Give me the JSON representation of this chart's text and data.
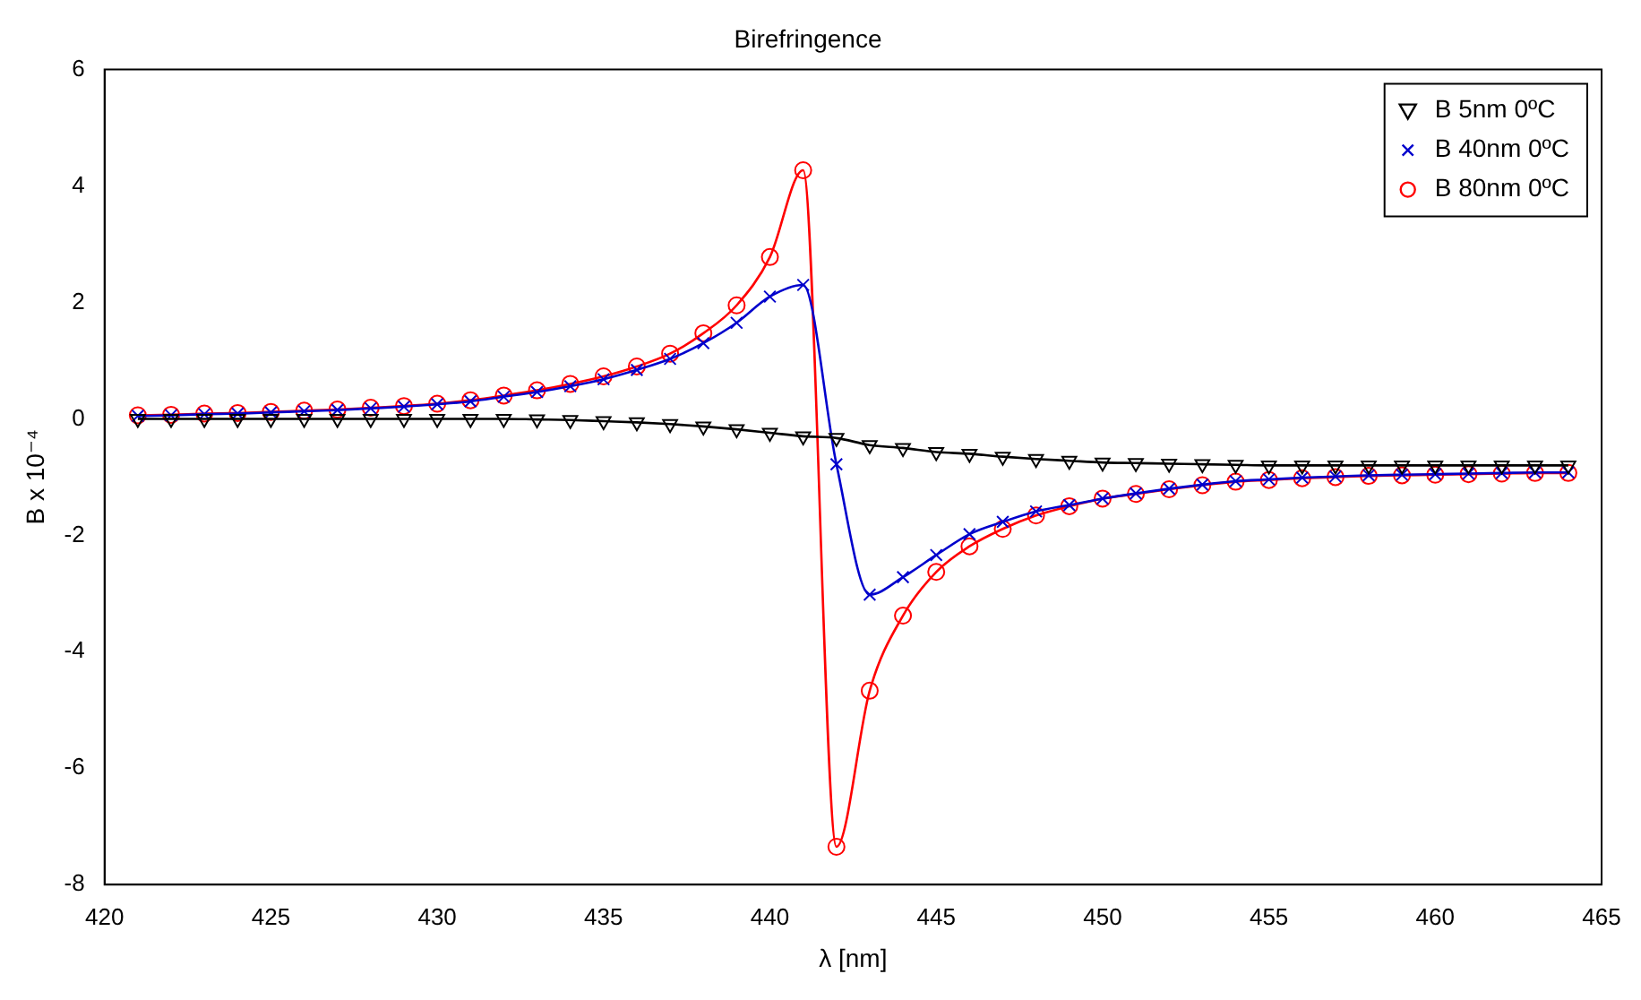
{
  "chart_data": {
    "type": "line",
    "title": "Birefringence",
    "xlabel": "λ [nm]",
    "ylabel": "B x 10⁻⁴",
    "x": [
      421,
      422,
      423,
      424,
      425,
      426,
      427,
      428,
      429,
      430,
      431,
      432,
      433,
      434,
      435,
      436,
      437,
      438,
      439,
      440,
      441,
      442,
      443,
      444,
      445,
      446,
      447,
      448,
      449,
      450,
      451,
      452,
      453,
      454,
      455,
      456,
      457,
      458,
      459,
      460,
      461,
      462,
      463,
      464
    ],
    "series": [
      {
        "name": "B 5nm 0ºC",
        "color": "#000000",
        "marker": "triangle",
        "values": [
          0,
          0,
          0,
          0,
          0,
          0,
          0,
          0,
          0,
          0,
          0,
          0,
          -0.01,
          -0.02,
          -0.04,
          -0.06,
          -0.09,
          -0.13,
          -0.18,
          -0.24,
          -0.3,
          -0.33,
          -0.45,
          -0.5,
          -0.57,
          -0.6,
          -0.65,
          -0.69,
          -0.72,
          -0.75,
          -0.76,
          -0.77,
          -0.78,
          -0.79,
          -0.8,
          -0.8,
          -0.8,
          -0.8,
          -0.8,
          -0.8,
          -0.8,
          -0.8,
          -0.8,
          -0.8
        ]
      },
      {
        "name": "B 40nm 0ºC",
        "color": "#0000cc",
        "marker": "cross",
        "values": [
          0.05,
          0.06,
          0.08,
          0.09,
          0.11,
          0.13,
          0.15,
          0.18,
          0.21,
          0.25,
          0.3,
          0.38,
          0.46,
          0.56,
          0.68,
          0.84,
          1.03,
          1.3,
          1.65,
          2.1,
          2.3,
          -0.78,
          -3.02,
          -2.72,
          -2.34,
          -1.98,
          -1.77,
          -1.59,
          -1.48,
          -1.37,
          -1.28,
          -1.2,
          -1.13,
          -1.07,
          -1.04,
          -1.01,
          -0.99,
          -0.97,
          -0.96,
          -0.95,
          -0.94,
          -0.93,
          -0.92,
          -0.92
        ]
      },
      {
        "name": "B 80nm 0ºC",
        "color": "#ff0000",
        "marker": "circle",
        "values": [
          0.06,
          0.07,
          0.09,
          0.1,
          0.12,
          0.14,
          0.16,
          0.19,
          0.22,
          0.26,
          0.32,
          0.4,
          0.49,
          0.6,
          0.73,
          0.9,
          1.12,
          1.47,
          1.95,
          2.78,
          4.27,
          -7.35,
          -4.67,
          -3.38,
          -2.63,
          -2.19,
          -1.89,
          -1.66,
          -1.5,
          -1.37,
          -1.29,
          -1.21,
          -1.14,
          -1.08,
          -1.05,
          -1.02,
          -1,
          -0.98,
          -0.97,
          -0.96,
          -0.95,
          -0.94,
          -0.93,
          -0.93
        ]
      }
    ],
    "xlim": [
      420,
      465
    ],
    "xticks": [
      420,
      425,
      430,
      435,
      440,
      445,
      450,
      455,
      460,
      465
    ],
    "ylim": [
      -8,
      6
    ],
    "yticks": [
      -8,
      -6,
      -4,
      -2,
      0,
      2,
      4,
      6
    ],
    "grid": false,
    "legend": "top right",
    "line_style": "solid"
  }
}
